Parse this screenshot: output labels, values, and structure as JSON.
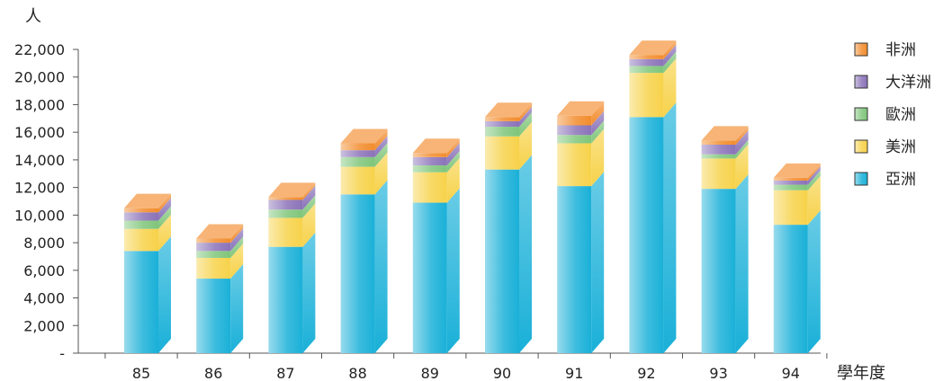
{
  "chart_data": {
    "type": "bar",
    "stacked": true,
    "three_d": true,
    "title": "",
    "y_unit_label": "人",
    "x_unit_label": "學年度",
    "categories": [
      "85",
      "86",
      "87",
      "88",
      "89",
      "90",
      "91",
      "92",
      "93",
      "94"
    ],
    "y_ticks": [
      "-",
      "2,000",
      "4,000",
      "6,000",
      "8,000",
      "10,000",
      "12,000",
      "14,000",
      "16,000",
      "18,000",
      "20,000",
      "22,000"
    ],
    "ylim": [
      0,
      22000
    ],
    "grid": false,
    "legend_position": "right",
    "series": [
      {
        "name": "亞洲",
        "color": "#1ab0d8",
        "values": [
          7400,
          5400,
          7700,
          11500,
          10900,
          13300,
          12100,
          17100,
          11900,
          9300
        ]
      },
      {
        "name": "美洲",
        "color": "#f7d24a",
        "values": [
          1600,
          1500,
          2100,
          2000,
          2200,
          2400,
          3100,
          3200,
          2200,
          2500
        ]
      },
      {
        "name": "歐洲",
        "color": "#7fc57a",
        "values": [
          600,
          500,
          600,
          700,
          500,
          700,
          600,
          500,
          300,
          400
        ]
      },
      {
        "name": "大洋洲",
        "color": "#8a72b8",
        "values": [
          600,
          600,
          700,
          500,
          600,
          400,
          700,
          500,
          700,
          300
        ]
      },
      {
        "name": "非洲",
        "color": "#f28c2c",
        "values": [
          300,
          300,
          200,
          500,
          300,
          300,
          700,
          300,
          300,
          200
        ]
      }
    ],
    "legend_order": [
      "非洲",
      "大洋洲",
      "歐洲",
      "美洲",
      "亞洲"
    ]
  }
}
